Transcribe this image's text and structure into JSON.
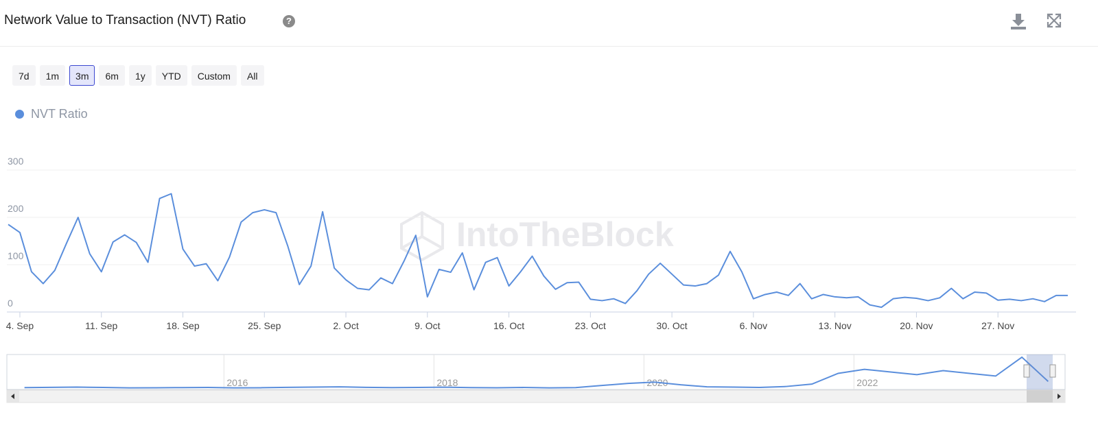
{
  "header": {
    "title": "Network Value to Transaction (NVT) Ratio",
    "ranges": [
      "7d",
      "1m",
      "3m",
      "6m",
      "1y",
      "YTD",
      "Custom",
      "All"
    ],
    "selected_range_index": 2
  },
  "watermark": "IntoTheBlock",
  "chart_data": {
    "type": "line",
    "categories": [
      null,
      "4. Sep",
      null,
      null,
      null,
      null,
      null,
      null,
      "11. Sep",
      null,
      null,
      null,
      null,
      null,
      null,
      "18. Sep",
      null,
      null,
      null,
      null,
      null,
      null,
      "25. Sep",
      null,
      null,
      null,
      null,
      null,
      null,
      "2. Oct",
      null,
      null,
      null,
      null,
      null,
      null,
      "9. Oct",
      null,
      null,
      null,
      null,
      null,
      null,
      "16. Oct",
      null,
      null,
      null,
      null,
      null,
      null,
      "23. Oct",
      null,
      null,
      null,
      null,
      null,
      null,
      "30. Oct",
      null,
      null,
      null,
      null,
      null,
      null,
      "6. Nov",
      null,
      null,
      null,
      null,
      null,
      null,
      "13. Nov",
      null,
      null,
      null,
      null,
      null,
      null,
      "20. Nov",
      null,
      null,
      null,
      null,
      null,
      null,
      "27. Nov",
      null,
      null,
      null,
      null,
      null,
      null
    ],
    "series": [
      {
        "name": "NVT Ratio",
        "color": "#5a8edc",
        "values": [
          185,
          168,
          85,
          60,
          88,
          145,
          200,
          123,
          85,
          148,
          163,
          147,
          105,
          240,
          250,
          133,
          97,
          102,
          66,
          116,
          190,
          210,
          216,
          210,
          140,
          58,
          97,
          212,
          93,
          68,
          50,
          47,
          72,
          60,
          108,
          162,
          32,
          90,
          84,
          125,
          47,
          105,
          115,
          55,
          85,
          118,
          76,
          48,
          62,
          63,
          27,
          24,
          28,
          18,
          45,
          80,
          103,
          80,
          57,
          55,
          60,
          78,
          128,
          85,
          28,
          37,
          42,
          35,
          60,
          28,
          37,
          32,
          30,
          32,
          15,
          10,
          28,
          31,
          29,
          24,
          30,
          50,
          28,
          42,
          40,
          25,
          27,
          24,
          28,
          22,
          35,
          35
        ]
      }
    ],
    "ylim": [
      0,
      300
    ],
    "yticks": [
      0,
      100,
      200,
      300
    ],
    "grid": true
  },
  "navigator": {
    "type": "line",
    "color": "#5a8edc",
    "x": [
      2014.1,
      2014.35,
      2014.6,
      2014.85,
      2015.1,
      2015.35,
      2015.6,
      2015.85,
      2016.1,
      2016.35,
      2016.6,
      2016.85,
      2017.1,
      2017.35,
      2017.6,
      2017.85,
      2018.1,
      2018.35,
      2018.6,
      2018.85,
      2019.1,
      2019.35,
      2019.6,
      2019.85,
      2020.1,
      2020.35,
      2020.6,
      2020.85,
      2021.1,
      2021.35,
      2021.6,
      2021.85,
      2022.1,
      2022.35,
      2022.6,
      2022.85,
      2023.1,
      2023.35,
      2023.6,
      2023.85
    ],
    "values": [
      14,
      16,
      18,
      15,
      12,
      13,
      14,
      15,
      12,
      13,
      16,
      18,
      20,
      16,
      14,
      15,
      17,
      14,
      13,
      15,
      12,
      14,
      30,
      45,
      55,
      35,
      20,
      18,
      15,
      22,
      40,
      120,
      150,
      130,
      110,
      140,
      120,
      100,
      240,
      60
    ],
    "xlim": [
      2014.05,
      2023.9
    ],
    "ylim": [
      0,
      260
    ],
    "xticks": [
      2016,
      2018,
      2020,
      2022
    ]
  }
}
